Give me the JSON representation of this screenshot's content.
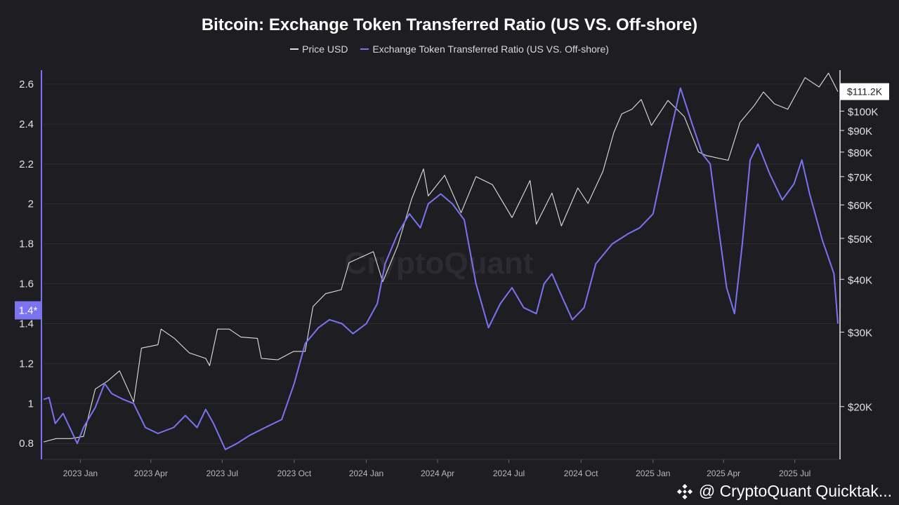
{
  "chart_data": {
    "type": "line",
    "title": "Bitcoin: Exchange Token Transferred Ratio (US VS. Off-shore)",
    "legend": [
      "Price USD",
      "Exchange Token Transferred Ratio (US VS. Off-shore)"
    ],
    "legend_placement": "top-center",
    "grid": true,
    "x_ticks": [
      "2023 Jan",
      "2023 Apr",
      "2023 Jul",
      "2023 Oct",
      "2024 Jan",
      "2024 Apr",
      "2024 Jul",
      "2024 Oct",
      "2025 Jan",
      "2025 Apr",
      "2025 Jul"
    ],
    "left_axis": {
      "ticks": [
        "0.8",
        "1",
        "1.2",
        "1.4",
        "1.6",
        "1.8",
        "2",
        "2.2",
        "2.4",
        "2.6"
      ],
      "range": [
        0.72,
        2.67
      ],
      "current_marker": "1.4*"
    },
    "right_axis": {
      "scale": "log",
      "ticks": [
        "$20K",
        "$30K",
        "$40K",
        "$50K",
        "$60K",
        "$70K",
        "$80K",
        "$90K",
        "$100K"
      ],
      "range": [
        15000,
        125000
      ],
      "current_marker": "$111.2K"
    },
    "x_range": [
      "2022-11-15",
      "2025-08-25"
    ],
    "series": [
      {
        "name": "Price USD",
        "color": "#e0e0e0",
        "axis": "right",
        "points": [
          [
            "2022-11-15",
            16500
          ],
          [
            "2022-12-01",
            16800
          ],
          [
            "2022-12-20",
            16800
          ],
          [
            "2023-01-05",
            17000
          ],
          [
            "2023-01-20",
            22000
          ],
          [
            "2023-02-05",
            23000
          ],
          [
            "2023-02-20",
            24300
          ],
          [
            "2023-03-10",
            20500
          ],
          [
            "2023-03-20",
            27500
          ],
          [
            "2023-04-10",
            28000
          ],
          [
            "2023-04-14",
            30500
          ],
          [
            "2023-05-01",
            29000
          ],
          [
            "2023-05-20",
            26800
          ],
          [
            "2023-06-10",
            26000
          ],
          [
            "2023-06-15",
            25000
          ],
          [
            "2023-06-25",
            30500
          ],
          [
            "2023-07-10",
            30500
          ],
          [
            "2023-07-25",
            29200
          ],
          [
            "2023-08-15",
            29000
          ],
          [
            "2023-08-20",
            26000
          ],
          [
            "2023-09-10",
            25800
          ],
          [
            "2023-09-30",
            27000
          ],
          [
            "2023-10-15",
            27000
          ],
          [
            "2023-10-25",
            34500
          ],
          [
            "2023-11-10",
            37000
          ],
          [
            "2023-11-30",
            37800
          ],
          [
            "2023-12-10",
            43800
          ],
          [
            "2024-01-10",
            46500
          ],
          [
            "2024-01-22",
            39500
          ],
          [
            "2024-02-10",
            48000
          ],
          [
            "2024-02-28",
            62000
          ],
          [
            "2024-03-14",
            73000
          ],
          [
            "2024-03-20",
            63000
          ],
          [
            "2024-04-10",
            70500
          ],
          [
            "2024-05-01",
            57500
          ],
          [
            "2024-05-20",
            70000
          ],
          [
            "2024-06-10",
            67000
          ],
          [
            "2024-07-05",
            56000
          ],
          [
            "2024-07-28",
            68500
          ],
          [
            "2024-08-05",
            54000
          ],
          [
            "2024-08-25",
            64000
          ],
          [
            "2024-09-06",
            53500
          ],
          [
            "2024-09-27",
            65800
          ],
          [
            "2024-10-10",
            60500
          ],
          [
            "2024-10-29",
            72000
          ],
          [
            "2024-11-12",
            89000
          ],
          [
            "2024-11-22",
            98500
          ],
          [
            "2024-12-05",
            101000
          ],
          [
            "2024-12-17",
            106500
          ],
          [
            "2024-12-30",
            92500
          ],
          [
            "2025-01-20",
            106000
          ],
          [
            "2025-02-10",
            97000
          ],
          [
            "2025-02-28",
            80000
          ],
          [
            "2025-03-10",
            78500
          ],
          [
            "2025-04-07",
            76500
          ],
          [
            "2025-04-22",
            94000
          ],
          [
            "2025-05-10",
            103000
          ],
          [
            "2025-05-22",
            111000
          ],
          [
            "2025-06-05",
            104000
          ],
          [
            "2025-06-22",
            101000
          ],
          [
            "2025-07-14",
            120000
          ],
          [
            "2025-08-01",
            114000
          ],
          [
            "2025-08-13",
            123000
          ],
          [
            "2025-08-25",
            111200
          ]
        ]
      },
      {
        "name": "Exchange Token Transferred Ratio (US VS. Off-shore)",
        "color": "#7b73f0",
        "axis": "left",
        "points": [
          [
            "2022-11-15",
            1.02
          ],
          [
            "2022-11-22",
            1.03
          ],
          [
            "2022-11-30",
            0.9
          ],
          [
            "2022-12-10",
            0.95
          ],
          [
            "2022-12-28",
            0.8
          ],
          [
            "2023-01-05",
            0.88
          ],
          [
            "2023-01-20",
            0.98
          ],
          [
            "2023-02-01",
            1.1
          ],
          [
            "2023-02-10",
            1.05
          ],
          [
            "2023-02-25",
            1.02
          ],
          [
            "2023-03-10",
            1.0
          ],
          [
            "2023-03-25",
            0.88
          ],
          [
            "2023-04-10",
            0.85
          ],
          [
            "2023-04-30",
            0.88
          ],
          [
            "2023-05-15",
            0.94
          ],
          [
            "2023-05-30",
            0.88
          ],
          [
            "2023-06-10",
            0.97
          ],
          [
            "2023-06-20",
            0.9
          ],
          [
            "2023-07-05",
            0.77
          ],
          [
            "2023-07-20",
            0.8
          ],
          [
            "2023-08-05",
            0.84
          ],
          [
            "2023-08-25",
            0.88
          ],
          [
            "2023-09-15",
            0.92
          ],
          [
            "2023-10-01",
            1.1
          ],
          [
            "2023-10-15",
            1.3
          ],
          [
            "2023-11-01",
            1.38
          ],
          [
            "2023-11-15",
            1.42
          ],
          [
            "2023-12-01",
            1.4
          ],
          [
            "2023-12-15",
            1.35
          ],
          [
            "2024-01-01",
            1.4
          ],
          [
            "2024-01-15",
            1.5
          ],
          [
            "2024-01-25",
            1.7
          ],
          [
            "2024-02-10",
            1.85
          ],
          [
            "2024-02-25",
            1.95
          ],
          [
            "2024-03-10",
            1.88
          ],
          [
            "2024-03-20",
            2.0
          ],
          [
            "2024-04-05",
            2.05
          ],
          [
            "2024-04-20",
            2.0
          ],
          [
            "2024-05-05",
            1.92
          ],
          [
            "2024-05-20",
            1.6
          ],
          [
            "2024-06-05",
            1.38
          ],
          [
            "2024-06-20",
            1.5
          ],
          [
            "2024-07-05",
            1.58
          ],
          [
            "2024-07-20",
            1.48
          ],
          [
            "2024-08-05",
            1.45
          ],
          [
            "2024-08-15",
            1.6
          ],
          [
            "2024-08-25",
            1.65
          ],
          [
            "2024-09-05",
            1.55
          ],
          [
            "2024-09-20",
            1.42
          ],
          [
            "2024-10-05",
            1.48
          ],
          [
            "2024-10-20",
            1.7
          ],
          [
            "2024-11-10",
            1.8
          ],
          [
            "2024-11-30",
            1.85
          ],
          [
            "2024-12-15",
            1.88
          ],
          [
            "2025-01-01",
            1.95
          ],
          [
            "2025-01-20",
            2.3
          ],
          [
            "2025-02-05",
            2.58
          ],
          [
            "2025-02-20",
            2.4
          ],
          [
            "2025-03-05",
            2.25
          ],
          [
            "2025-03-15",
            2.2
          ],
          [
            "2025-03-25",
            1.9
          ],
          [
            "2025-04-05",
            1.58
          ],
          [
            "2025-04-15",
            1.45
          ],
          [
            "2025-04-25",
            1.8
          ],
          [
            "2025-05-05",
            2.22
          ],
          [
            "2025-05-15",
            2.3
          ],
          [
            "2025-05-30",
            2.15
          ],
          [
            "2025-06-15",
            2.02
          ],
          [
            "2025-06-30",
            2.1
          ],
          [
            "2025-07-10",
            2.22
          ],
          [
            "2025-07-20",
            2.05
          ],
          [
            "2025-08-05",
            1.82
          ],
          [
            "2025-08-20",
            1.65
          ],
          [
            "2025-08-25",
            1.4
          ]
        ]
      }
    ]
  },
  "footer": {
    "brand_text": "@ CryptoQuant Quicktak...",
    "icon": "binance-diamond-icon"
  },
  "watermark": "CryptoQuant"
}
